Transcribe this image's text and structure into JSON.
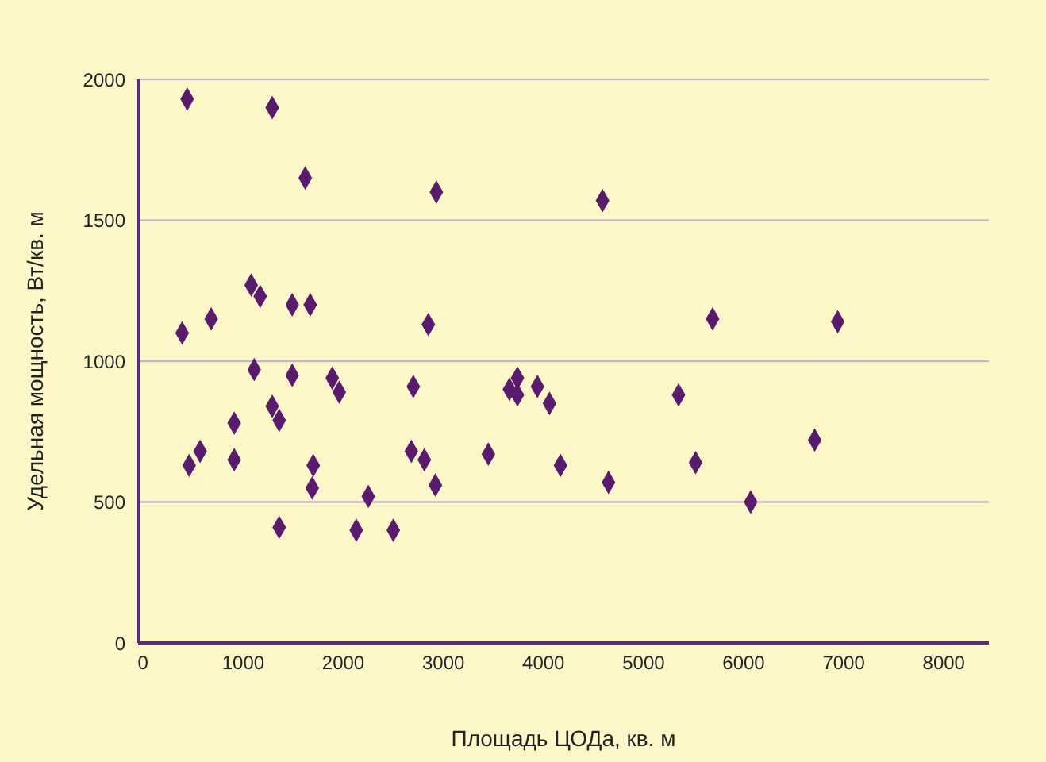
{
  "chart_data": {
    "type": "scatter",
    "xlabel": "Площадь ЦОДа, кв. м",
    "ylabel": "Удельная мощность, Вт/кв. м",
    "x": [
      440,
      1290,
      1620,
      2930,
      4590,
      1080,
      1170,
      1490,
      1670,
      2850,
      680,
      390,
      1110,
      1490,
      1890,
      1960,
      2700,
      3660,
      3740,
      3740,
      3940,
      4060,
      4170,
      1290,
      1360,
      910,
      570,
      460,
      910,
      1700,
      1690,
      2680,
      2810,
      2920,
      3450,
      2250,
      1360,
      2130,
      2500,
      4650,
      5350,
      5520,
      6070,
      6710,
      5690,
      6940
    ],
    "series": [
      {
        "color": "#5a1a6e",
        "values": [
          1930,
          1900,
          1650,
          1600,
          1570,
          1270,
          1230,
          1200,
          1200,
          1130,
          1150,
          1100,
          970,
          950,
          940,
          890,
          910,
          900,
          940,
          880,
          910,
          850,
          630,
          840,
          790,
          780,
          680,
          630,
          650,
          630,
          550,
          680,
          650,
          560,
          670,
          520,
          410,
          400,
          400,
          570,
          880,
          640,
          500,
          720,
          1150,
          1140
        ]
      }
    ],
    "xlim": [
      -50,
      8450
    ],
    "ylim": [
      0,
      2000
    ],
    "xticks": [
      0,
      1000,
      2000,
      3000,
      4000,
      5000,
      6000,
      7000,
      8000
    ],
    "yticks": [
      0,
      500,
      1000,
      1500,
      2000
    ],
    "grid": "y",
    "marker": "diamond",
    "legend": false
  }
}
